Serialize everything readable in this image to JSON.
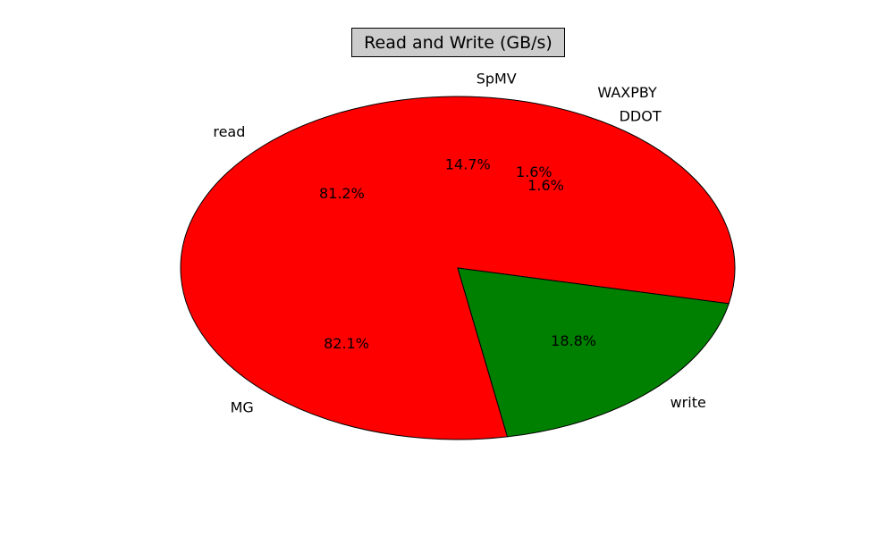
{
  "chart_data": {
    "type": "pie",
    "title": "Read and Write (GB/s)",
    "inner_ring": {
      "name": "",
      "slices": [
        {
          "label": "read",
          "value": 81.2,
          "pct_label": "81.2%",
          "color": "#ff0000"
        },
        {
          "label": "write",
          "value": 18.8,
          "pct_label": "18.8%",
          "color": "#008000"
        }
      ]
    },
    "outer_ring": {
      "name": "",
      "slices": [
        {
          "label": "MG",
          "value": 82.1,
          "pct_label": "82.1%",
          "color": "#ff0000"
        },
        {
          "label": "SpMV",
          "value": 14.7,
          "pct_label": "14.7%",
          "color": "#ff0000"
        },
        {
          "label": "WAXPBY",
          "value": 1.6,
          "pct_label": "1.6%",
          "color": "#ff0000"
        },
        {
          "label": "DDOT",
          "value": 1.6,
          "pct_label": "1.6%",
          "color": "#ff0000"
        }
      ]
    },
    "legend": "none",
    "edge_color": "#000000"
  }
}
